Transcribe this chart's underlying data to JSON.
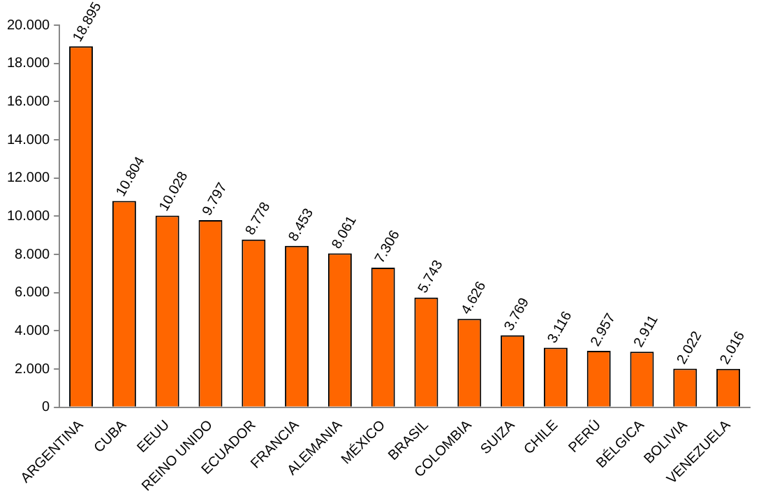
{
  "chart_data": {
    "type": "bar",
    "categories": [
      "ARGENTINA",
      "CUBA",
      "EEUU",
      "REINO UNIDO",
      "ECUADOR",
      "FRANCIA",
      "ALEMANIA",
      "MÉXICO",
      "BRASIL",
      "COLOMBIA",
      "SUIZA",
      "CHILE",
      "PERÚ",
      "BÉLGICA",
      "BOLIVIA",
      "VENEZUELA"
    ],
    "values": [
      18895,
      10804,
      10028,
      9797,
      8778,
      8453,
      8061,
      7306,
      5743,
      4626,
      3769,
      3116,
      2957,
      2911,
      2022,
      2016
    ],
    "value_labels": [
      "18.895",
      "10.804",
      "10.028",
      "9.797",
      "8.778",
      "8.453",
      "8.061",
      "7.306",
      "5.743",
      "4.626",
      "3.769",
      "3.116",
      "2.957",
      "2.911",
      "2.022",
      "2.016"
    ],
    "color": "#ff6600",
    "ylim": [
      0,
      20000
    ],
    "yticks": [
      0,
      {
        "value": 2000,
        "label": "2.000"
      },
      {
        "value": 4000,
        "label": "4.000"
      },
      {
        "value": 6000,
        "label": "6.000"
      },
      {
        "value": 8000,
        "label": "8.000"
      },
      {
        "value": 10000,
        "label": "10.000"
      },
      {
        "value": 12000,
        "label": "12.000"
      },
      {
        "value": 14000,
        "label": "14.000"
      },
      {
        "value": 16000,
        "label": "16.000"
      },
      {
        "value": 18000,
        "label": "18.000"
      },
      {
        "value": 20000,
        "label": "20.000"
      }
    ],
    "grid": false,
    "legend": false
  }
}
